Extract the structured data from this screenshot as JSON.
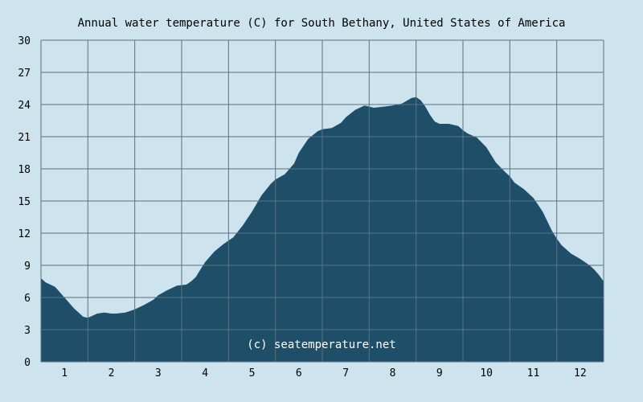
{
  "chart_data": {
    "type": "area",
    "title": "Annual water temperature (C) for South Bethany, United States of America",
    "xlabel": "",
    "ylabel": "",
    "x_range": [
      0.5,
      12.5
    ],
    "ylim": [
      0,
      30
    ],
    "y_ticks": [
      0,
      3,
      6,
      9,
      12,
      15,
      18,
      21,
      24,
      27,
      30
    ],
    "x_ticks": [
      1,
      2,
      3,
      4,
      5,
      6,
      7,
      8,
      9,
      10,
      11,
      12
    ],
    "grid": true,
    "watermark": "(c) seatemperature.net",
    "colors": {
      "area": "#1f4e68",
      "background": "#cde3ee",
      "grid": "#5a7183"
    },
    "series": [
      {
        "x": [
          0.5,
          0.6,
          0.8,
          1.0,
          1.2,
          1.4,
          1.5,
          1.7,
          1.85,
          2.0,
          2.1,
          2.3,
          2.5,
          2.7,
          2.9,
          3.0,
          3.2,
          3.4,
          3.6,
          3.7,
          3.8,
          3.9,
          4.0,
          4.2,
          4.4,
          4.6,
          4.8,
          5.0,
          5.2,
          5.4,
          5.5,
          5.7,
          5.9,
          6.0,
          6.2,
          6.4,
          6.5,
          6.7,
          6.9,
          7.0,
          7.2,
          7.4,
          7.6,
          7.8,
          8.0,
          8.2,
          8.4,
          8.5,
          8.6,
          8.7,
          8.8,
          8.9,
          9.0,
          9.2,
          9.4,
          9.5,
          9.6,
          9.8,
          10.0,
          10.2,
          10.4,
          10.5,
          10.6,
          10.8,
          11.0,
          11.2,
          11.4,
          11.5,
          11.6,
          11.8,
          12.0,
          12.1,
          12.2,
          12.3,
          12.4,
          12.5
        ],
        "y": [
          7.8,
          7.4,
          7.0,
          6.0,
          5.0,
          4.2,
          4.1,
          4.5,
          4.6,
          4.5,
          4.5,
          4.6,
          4.9,
          5.3,
          5.8,
          6.2,
          6.7,
          7.1,
          7.2,
          7.5,
          7.9,
          8.6,
          9.3,
          10.3,
          11.0,
          11.6,
          12.7,
          14.0,
          15.5,
          16.6,
          17.0,
          17.5,
          18.5,
          19.5,
          20.8,
          21.5,
          21.7,
          21.8,
          22.3,
          22.8,
          23.5,
          23.9,
          23.7,
          23.8,
          23.9,
          24.1,
          24.6,
          24.7,
          24.4,
          23.8,
          23.0,
          22.4,
          22.2,
          22.2,
          22.0,
          21.6,
          21.3,
          20.9,
          20.0,
          18.6,
          17.7,
          17.3,
          16.7,
          16.1,
          15.3,
          14.0,
          12.2,
          11.5,
          10.9,
          10.1,
          9.6,
          9.3,
          9.0,
          8.6,
          8.1,
          7.5
        ]
      }
    ]
  }
}
